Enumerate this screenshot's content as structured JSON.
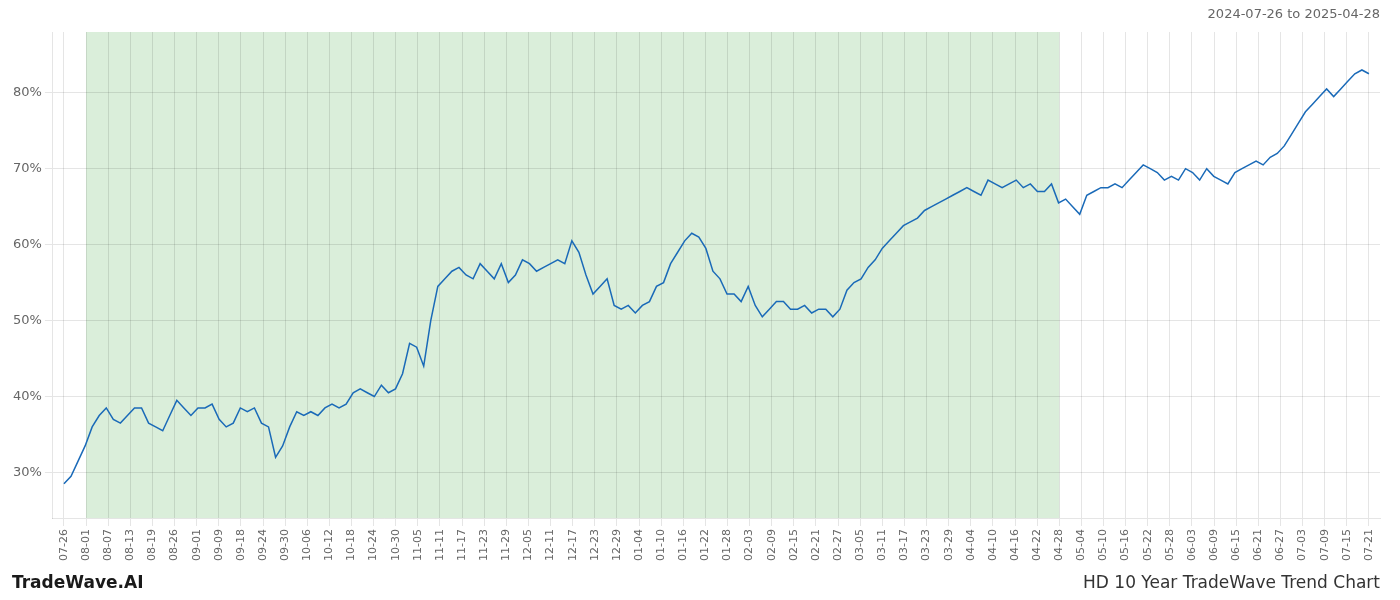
{
  "chart_data": {
    "type": "line",
    "annotations": [
      "2024-07-26 to 2025-04-28",
      "TradeWave.AI",
      "HD 10 Year TradeWave Trend Chart"
    ],
    "color": "#1a6ab8",
    "grid": true,
    "xlim": [
      -0.5,
      59.5
    ],
    "xticks": [
      {
        "value": 0,
        "label": "07-26"
      },
      {
        "value": 1,
        "label": "08-01"
      },
      {
        "value": 2,
        "label": "08-07"
      },
      {
        "value": 3,
        "label": "08-13"
      },
      {
        "value": 4,
        "label": "08-19"
      },
      {
        "value": 5,
        "label": "08-26"
      },
      {
        "value": 6,
        "label": "09-01"
      },
      {
        "value": 7,
        "label": "09-09"
      },
      {
        "value": 8,
        "label": "09-18"
      },
      {
        "value": 9,
        "label": "09-24"
      },
      {
        "value": 10,
        "label": "09-30"
      },
      {
        "value": 11,
        "label": "10-06"
      },
      {
        "value": 12,
        "label": "10-12"
      },
      {
        "value": 13,
        "label": "10-18"
      },
      {
        "value": 14,
        "label": "10-24"
      },
      {
        "value": 15,
        "label": "10-30"
      },
      {
        "value": 16,
        "label": "11-05"
      },
      {
        "value": 17,
        "label": "11-11"
      },
      {
        "value": 18,
        "label": "11-17"
      },
      {
        "value": 19,
        "label": "11-23"
      },
      {
        "value": 20,
        "label": "11-29"
      },
      {
        "value": 21,
        "label": "12-05"
      },
      {
        "value": 22,
        "label": "12-11"
      },
      {
        "value": 23,
        "label": "12-17"
      },
      {
        "value": 24,
        "label": "12-23"
      },
      {
        "value": 25,
        "label": "12-29"
      },
      {
        "value": 26,
        "label": "01-04"
      },
      {
        "value": 27,
        "label": "01-10"
      },
      {
        "value": 28,
        "label": "01-16"
      },
      {
        "value": 29,
        "label": "01-22"
      },
      {
        "value": 30,
        "label": "01-28"
      },
      {
        "value": 31,
        "label": "02-03"
      },
      {
        "value": 32,
        "label": "02-09"
      },
      {
        "value": 33,
        "label": "02-15"
      },
      {
        "value": 34,
        "label": "02-21"
      },
      {
        "value": 35,
        "label": "02-27"
      },
      {
        "value": 36,
        "label": "03-05"
      },
      {
        "value": 37,
        "label": "03-11"
      },
      {
        "value": 38,
        "label": "03-17"
      },
      {
        "value": 39,
        "label": "03-23"
      },
      {
        "value": 40,
        "label": "03-29"
      },
      {
        "value": 41,
        "label": "04-04"
      },
      {
        "value": 42,
        "label": "04-10"
      },
      {
        "value": 43,
        "label": "04-16"
      },
      {
        "value": 44,
        "label": "04-22"
      },
      {
        "value": 45,
        "label": "04-28"
      },
      {
        "value": 46,
        "label": "05-04"
      },
      {
        "value": 47,
        "label": "05-10"
      },
      {
        "value": 48,
        "label": "05-16"
      },
      {
        "value": 49,
        "label": "05-22"
      },
      {
        "value": 50,
        "label": "05-28"
      },
      {
        "value": 51,
        "label": "06-03"
      },
      {
        "value": 52,
        "label": "06-09"
      },
      {
        "value": 53,
        "label": "06-15"
      },
      {
        "value": 54,
        "label": "06-21"
      },
      {
        "value": 55,
        "label": "06-27"
      },
      {
        "value": 56,
        "label": "07-03"
      },
      {
        "value": 57,
        "label": "07-09"
      },
      {
        "value": 58,
        "label": "07-15"
      },
      {
        "value": 59,
        "label": "07-21"
      }
    ],
    "ylim": [
      24,
      88
    ],
    "yticks": [
      {
        "value": 30,
        "label": "30%"
      },
      {
        "value": 40,
        "label": "40%"
      },
      {
        "value": 50,
        "label": "50%"
      },
      {
        "value": 60,
        "label": "60%"
      },
      {
        "value": 70,
        "label": "70%"
      },
      {
        "value": 80,
        "label": "80%"
      }
    ],
    "shaded_region": {
      "x": [
        1,
        45
      ],
      "color": "#daeeda"
    },
    "x": [
      0,
      0.3189,
      0.6378,
      0.9568,
      1.2757,
      1.5946,
      1.9135,
      2.2324,
      2.5514,
      2.8703,
      3.1892,
      3.5081,
      3.827,
      4.1459,
      4.4649,
      4.7838,
      5.1027,
      5.4216,
      5.7405,
      6.0595,
      6.3784,
      6.6973,
      7.0162,
      7.3351,
      7.6541,
      7.973,
      8.2919,
      8.6108,
      8.9297,
      9.2486,
      9.5676,
      9.8865,
      10.2054,
      10.5243,
      10.8432,
      11.1622,
      11.4811,
      11.8,
      12.1189,
      12.4378,
      12.7568,
      13.0757,
      13.3946,
      13.7135,
      14.0324,
      14.3514,
      14.6703,
      14.9892,
      15.3081,
      15.627,
      15.9459,
      16.2649,
      16.5838,
      16.9027,
      17.2216,
      17.5405,
      17.8595,
      18.1784,
      18.4973,
      18.8162,
      19.1351,
      19.4541,
      19.773,
      20.0919,
      20.4108,
      20.7297,
      21.0486,
      21.3676,
      21.6865,
      22.0054,
      22.3243,
      22.6432,
      22.9622,
      23.2811,
      23.6,
      23.9189,
      24.2378,
      24.5568,
      24.8757,
      25.1946,
      25.5135,
      25.8324,
      26.1514,
      26.4703,
      26.7892,
      27.1081,
      27.427,
      27.7459,
      28.0649,
      28.3838,
      28.7027,
      29.0216,
      29.3405,
      29.6595,
      29.9784,
      30.2973,
      30.6162,
      30.9351,
      31.2541,
      31.573,
      31.8919,
      32.2108,
      32.5297,
      32.8486,
      33.1676,
      33.4865,
      33.8054,
      34.1243,
      34.4432,
      34.7622,
      35.0811,
      35.4,
      35.7189,
      36.0378,
      36.3568,
      36.6757,
      36.9946,
      37.3135,
      37.6324,
      37.9514,
      38.2703,
      38.5892,
      38.9081,
      39.227,
      39.5459,
      39.8649,
      40.1838,
      40.5027,
      40.8216,
      41.1405,
      41.4595,
      41.7784,
      42.0973,
      42.4162,
      42.7351,
      43.0541,
      43.373,
      43.6919,
      44.0108,
      44.3297,
      44.6486,
      44.9676,
      45.2865,
      45.6054,
      45.9243,
      46.2432,
      46.5622,
      46.8811,
      47.2,
      47.5189,
      47.8378,
      48.1568,
      48.4757,
      48.7946,
      49.1135,
      49.4324,
      49.7514,
      50.0703,
      50.3892,
      50.7081,
      51.027,
      51.3459,
      51.6649,
      51.9838,
      52.3027,
      52.6216,
      52.9405,
      53.2595,
      53.5784,
      53.8973,
      54.2162,
      54.5351,
      54.8541,
      55.173,
      55.4919,
      55.8108,
      56.1297,
      56.4486,
      56.7676,
      57.0865,
      57.4054,
      57.7243,
      58.0432,
      58.3622,
      58.6811,
      59
    ],
    "values": [
      28.5,
      29.5,
      31.5,
      33.5,
      36.0,
      37.5,
      38.5,
      37.0,
      36.5,
      37.5,
      38.5,
      38.5,
      36.5,
      36.0,
      35.5,
      37.5,
      39.5,
      38.5,
      37.5,
      38.5,
      38.5,
      39.0,
      37.0,
      36.0,
      36.5,
      38.5,
      38.0,
      38.5,
      36.5,
      36.0,
      32.0,
      33.5,
      36.0,
      38.0,
      37.5,
      38.0,
      37.5,
      38.5,
      39.0,
      38.5,
      39.0,
      40.5,
      41.0,
      40.5,
      40.0,
      41.5,
      40.5,
      41.0,
      43.0,
      47.0,
      46.5,
      44.0,
      50.0,
      54.5,
      55.5,
      56.5,
      57.0,
      56.0,
      55.5,
      57.5,
      56.5,
      55.5,
      57.5,
      55.0,
      56.0,
      58.0,
      57.5,
      56.5,
      57.0,
      57.5,
      58.0,
      57.5,
      60.5,
      59.0,
      56.0,
      53.5,
      54.5,
      55.5,
      52.0,
      51.5,
      52.0,
      51.0,
      52.0,
      52.5,
      54.5,
      55.0,
      57.5,
      59.0,
      60.5,
      61.5,
      61.0,
      59.5,
      56.5,
      55.5,
      53.5,
      53.5,
      52.5,
      54.5,
      52.0,
      50.5,
      51.5,
      52.5,
      52.5,
      51.5,
      51.5,
      52.0,
      51.0,
      51.5,
      51.5,
      50.5,
      51.5,
      54.0,
      55.0,
      55.5,
      57.0,
      58.0,
      59.5,
      60.5,
      61.5,
      62.5,
      63.0,
      63.5,
      64.5,
      65.0,
      65.5,
      66.0,
      66.5,
      67.0,
      67.5,
      67.0,
      66.5,
      68.5,
      68.0,
      67.5,
      68.0,
      68.5,
      67.5,
      68.0,
      67.0,
      67.0,
      68.0,
      65.5,
      66.0,
      65.0,
      64.0,
      66.5,
      67.0,
      67.5,
      67.5,
      68.0,
      67.5,
      68.5,
      69.5,
      70.5,
      70.0,
      69.5,
      68.5,
      69.0,
      68.5,
      70.0,
      69.5,
      68.5,
      70.0,
      69.0,
      68.5,
      68.0,
      69.5,
      70.0,
      70.5,
      71.0,
      70.5,
      71.5,
      72.0,
      73.0,
      74.5,
      76.0,
      77.5,
      78.5,
      79.5,
      80.5,
      79.5,
      80.5,
      81.5,
      82.5,
      83.0,
      82.5
    ]
  }
}
